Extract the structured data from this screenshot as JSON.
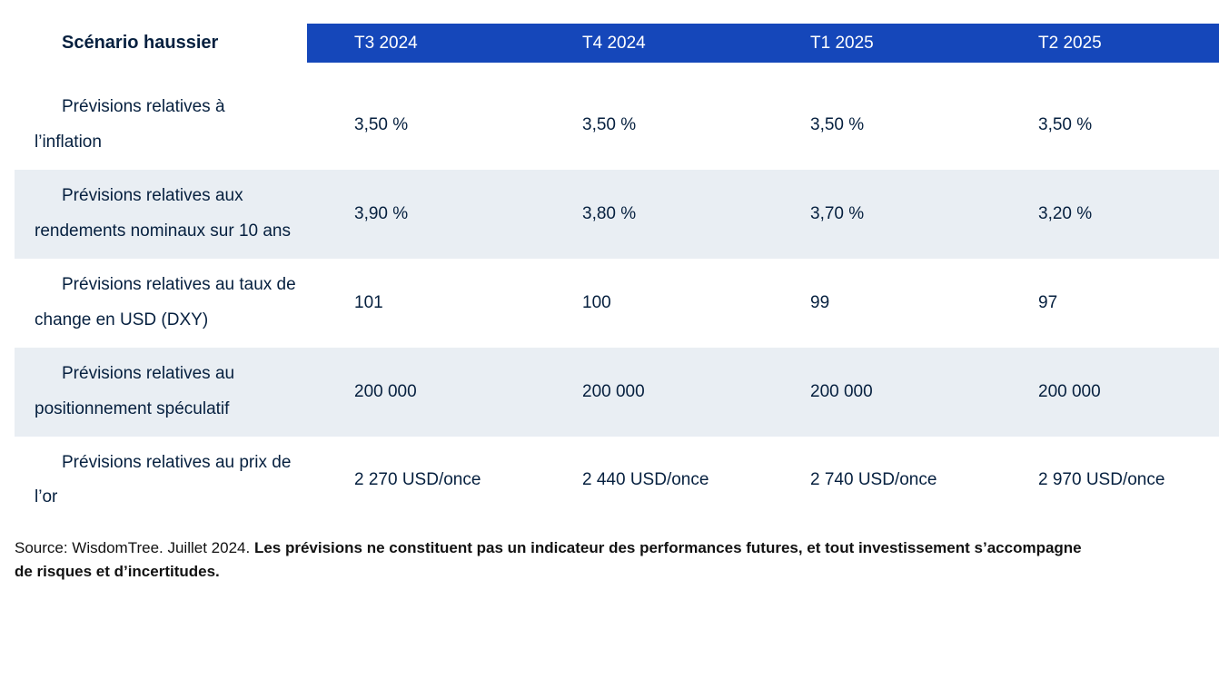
{
  "table": {
    "corner_title": "Scénario haussier",
    "columns": [
      "T3 2024",
      "T4 2024",
      "T1 2025",
      "T2 2025"
    ],
    "rows": [
      {
        "label": "Prévisions relatives à l’inflation",
        "values": [
          "3,50 %",
          "3,50 %",
          "3,50 %",
          "3,50 %"
        ]
      },
      {
        "label": "Prévisions relatives aux rendements nominaux sur 10 ans",
        "values": [
          "3,90 %",
          "3,80 %",
          "3,70 %",
          "3,20 %"
        ]
      },
      {
        "label": "Prévisions relatives au taux de change en USD (DXY)",
        "values": [
          "101",
          "100",
          "99",
          "97"
        ]
      },
      {
        "label": "Prévisions relatives au positionnement spéculatif",
        "values": [
          "200 000",
          "200 000",
          "200 000",
          "200 000"
        ]
      },
      {
        "label": "Prévisions relatives au prix de l’or",
        "values": [
          "2 270 USD/once",
          "2 440 USD/once",
          "2 740 USD/once",
          "2 970 USD/once"
        ]
      }
    ]
  },
  "footer": {
    "normal": "Source: WisdomTree. Juillet 2024. ",
    "bold": "Les prévisions ne constituent pas un indicateur des performances futures, et tout investissement s’accompagne de risques et d’incertitudes."
  },
  "colors": {
    "header-blue": "#1547ba",
    "row-alt": "#e9eef3",
    "text-navy": "#06203f"
  },
  "chart_data": {
    "type": "table",
    "title": "Scénario haussier",
    "columns": [
      "T3 2024",
      "T4 2024",
      "T1 2025",
      "T2 2025"
    ],
    "rows": [
      {
        "label": "Prévisions relatives à l’inflation",
        "values": [
          "3,50 %",
          "3,50 %",
          "3,50 %",
          "3,50 %"
        ]
      },
      {
        "label": "Prévisions relatives aux rendements nominaux sur 10 ans",
        "values": [
          "3,90 %",
          "3,80 %",
          "3,70 %",
          "3,20 %"
        ]
      },
      {
        "label": "Prévisions relatives au taux de change en USD (DXY)",
        "values": [
          "101",
          "100",
          "99",
          "97"
        ]
      },
      {
        "label": "Prévisions relatives au positionnement spéculatif",
        "values": [
          "200 000",
          "200 000",
          "200 000",
          "200 000"
        ]
      },
      {
        "label": "Prévisions relatives au prix de l’or",
        "values": [
          "2 270 USD/once",
          "2 440 USD/once",
          "2 740 USD/once",
          "2 970 USD/once"
        ]
      }
    ],
    "source_note": "Source: WisdomTree. Juillet 2024. Les prévisions ne constituent pas un indicateur des performances futures, et tout investissement s’accompagne de risques et d’incertitudes.",
    "layout": {
      "header_background": "#1547ba",
      "alternating_rows": true,
      "alt_row_color": "#e9eef3"
    }
  }
}
